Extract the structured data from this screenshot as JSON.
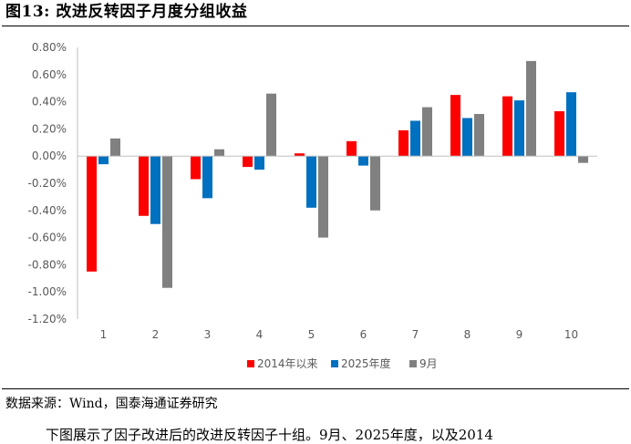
{
  "figure": {
    "title": "图13:  改进反转因子月度分组收益",
    "source": "数据来源：Wind，国泰海通证券研究",
    "body_text": "下图展示了因子改进后的改进反转因子十组。9月、2025年度，以及2014"
  },
  "chart_data": {
    "type": "bar",
    "title": "",
    "xlabel": "",
    "ylabel": "",
    "categories": [
      "1",
      "2",
      "3",
      "4",
      "5",
      "6",
      "7",
      "8",
      "9",
      "10"
    ],
    "series": [
      {
        "name": "2014年以来",
        "color": "#ff0000",
        "values": [
          -0.85,
          -0.44,
          -0.17,
          -0.08,
          0.02,
          0.11,
          0.19,
          0.45,
          0.44,
          0.33
        ]
      },
      {
        "name": "2025年度",
        "color": "#0070c0",
        "values": [
          -0.06,
          -0.5,
          -0.31,
          -0.1,
          -0.38,
          -0.07,
          0.26,
          0.28,
          0.41,
          0.47
        ]
      },
      {
        "name": "9月",
        "color": "#808080",
        "values": [
          0.13,
          -0.97,
          0.05,
          0.46,
          -0.6,
          -0.4,
          0.36,
          0.31,
          0.7,
          -0.05
        ]
      }
    ],
    "ylim": [
      -1.2,
      0.8
    ],
    "yticks": [
      "0.80%",
      "0.60%",
      "0.40%",
      "0.20%",
      "0.00%",
      "-0.20%",
      "-0.40%",
      "-0.60%",
      "-0.80%",
      "-1.00%",
      "-1.20%"
    ],
    "legend_position": "bottom",
    "grid": false
  }
}
